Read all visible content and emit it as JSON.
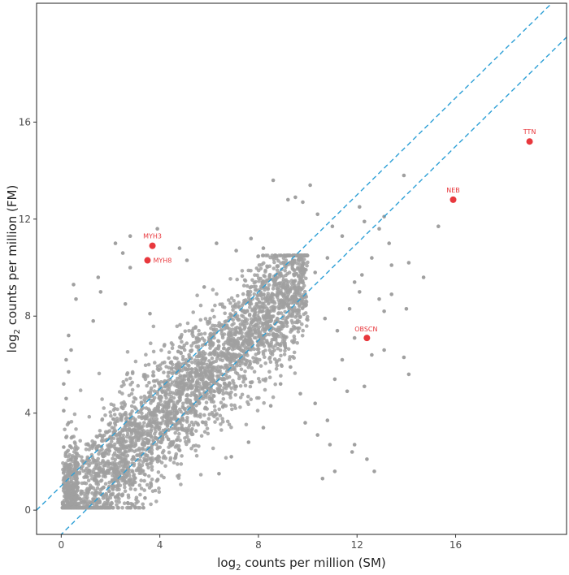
{
  "chart_data": {
    "type": "scatter",
    "title": "",
    "xlabel": {
      "prefix": "log",
      "sub": "2",
      "suffix": " counts per million (SM)"
    },
    "ylabel": {
      "prefix": "log",
      "sub": "2",
      "suffix": " counts per million (FM)"
    },
    "xlim": [
      -1,
      20.5
    ],
    "ylim": [
      -1,
      20.9
    ],
    "x_ticks": [
      0,
      4,
      8,
      12,
      16
    ],
    "y_ticks": [
      0,
      4,
      8,
      12,
      16
    ],
    "grid": false,
    "point_color": "#a0a0a0",
    "highlight_color": "#e8383d",
    "reference_line_color": "#2c9fd6",
    "reference_lines": [
      {
        "slope": 1,
        "intercept": 1
      },
      {
        "slope": 1,
        "intercept": -1
      }
    ],
    "highlighted": [
      {
        "label": "TTN",
        "x": 19.0,
        "y": 15.2
      },
      {
        "label": "NEB",
        "x": 15.9,
        "y": 12.8
      },
      {
        "label": "MYH3",
        "x": 3.7,
        "y": 10.9
      },
      {
        "label": "MYH8",
        "x": 3.5,
        "y": 10.3
      },
      {
        "label": "OBSCN",
        "x": 12.4,
        "y": 7.1
      }
    ],
    "background_points": [
      [
        2.8,
        11.3
      ],
      [
        2.2,
        11.0
      ],
      [
        2.5,
        10.6
      ],
      [
        3.9,
        11.6
      ],
      [
        2.8,
        10.0
      ],
      [
        1.5,
        9.6
      ],
      [
        0.5,
        9.3
      ],
      [
        0.6,
        8.7
      ],
      [
        1.6,
        9.0
      ],
      [
        4.8,
        10.8
      ],
      [
        5.1,
        10.3
      ],
      [
        6.3,
        11.0
      ],
      [
        7.1,
        10.7
      ],
      [
        7.7,
        11.2
      ],
      [
        8.2,
        10.8
      ],
      [
        8.6,
        13.6
      ],
      [
        9.2,
        12.8
      ],
      [
        9.5,
        12.9
      ],
      [
        10.1,
        13.4
      ],
      [
        9.8,
        12.7
      ],
      [
        10.4,
        12.2
      ],
      [
        11.0,
        11.7
      ],
      [
        11.4,
        11.3
      ],
      [
        12.1,
        12.5
      ],
      [
        12.3,
        11.9
      ],
      [
        13.1,
        12.1
      ],
      [
        13.9,
        13.8
      ],
      [
        12.9,
        11.6
      ],
      [
        13.3,
        11.0
      ],
      [
        12.6,
        10.4
      ],
      [
        13.4,
        10.1
      ],
      [
        14.1,
        10.2
      ],
      [
        14.7,
        9.6
      ],
      [
        15.3,
        11.7
      ],
      [
        10.3,
        9.8
      ],
      [
        10.8,
        10.4
      ],
      [
        11.9,
        9.4
      ],
      [
        12.2,
        9.7
      ],
      [
        12.1,
        9.0
      ],
      [
        12.9,
        8.7
      ],
      [
        13.4,
        8.9
      ],
      [
        13.1,
        8.2
      ],
      [
        11.7,
        8.3
      ],
      [
        10.7,
        7.9
      ],
      [
        11.2,
        7.4
      ],
      [
        11.9,
        7.1
      ],
      [
        12.6,
        6.4
      ],
      [
        13.1,
        6.6
      ],
      [
        13.9,
        6.3
      ],
      [
        14.1,
        5.6
      ],
      [
        14.0,
        8.3
      ],
      [
        11.4,
        6.2
      ],
      [
        11.1,
        5.4
      ],
      [
        12.3,
        5.1
      ],
      [
        11.6,
        4.9
      ],
      [
        10.3,
        4.4
      ],
      [
        10.8,
        3.7
      ],
      [
        10.4,
        3.1
      ],
      [
        9.9,
        3.6
      ],
      [
        10.9,
        2.7
      ],
      [
        11.8,
        2.4
      ],
      [
        11.9,
        2.7
      ],
      [
        12.4,
        2.1
      ],
      [
        12.7,
        1.6
      ],
      [
        10.6,
        1.3
      ],
      [
        11.1,
        1.6
      ],
      [
        0.2,
        6.2
      ],
      [
        0.4,
        6.6
      ],
      [
        0.3,
        5.7
      ],
      [
        0.1,
        5.2
      ],
      [
        0.3,
        7.2
      ],
      [
        1.3,
        7.8
      ],
      [
        2.6,
        8.5
      ],
      [
        3.6,
        8.1
      ],
      [
        5.8,
        9.2
      ],
      [
        0.2,
        1.2
      ],
      [
        0.1,
        0.9
      ],
      [
        0.2,
        0.5
      ],
      [
        0.3,
        1.6
      ],
      [
        0.4,
        2.1
      ],
      [
        0.1,
        2.6
      ],
      [
        0.2,
        3.0
      ],
      [
        0.3,
        3.6
      ],
      [
        0.1,
        4.1
      ],
      [
        0.2,
        4.6
      ],
      [
        1.2,
        0.3
      ],
      [
        2.0,
        0.2
      ],
      [
        2.7,
        0.3
      ],
      [
        3.4,
        0.5
      ],
      [
        8.7,
        7.1
      ],
      [
        9.1,
        6.7
      ],
      [
        9.6,
        7.5
      ],
      [
        9.3,
        5.9
      ],
      [
        8.9,
        5.2
      ],
      [
        9.7,
        4.8
      ],
      [
        8.5,
        4.3
      ],
      [
        8.2,
        3.4
      ],
      [
        7.6,
        2.8
      ],
      [
        6.9,
        2.2
      ],
      [
        6.4,
        1.5
      ]
    ],
    "cloud": {
      "count": 3800,
      "x_range": [
        0.1,
        10.0
      ],
      "y_range": [
        0.1,
        10.5
      ],
      "ridge_intercept": -0.3,
      "spread": 1.25
    }
  }
}
